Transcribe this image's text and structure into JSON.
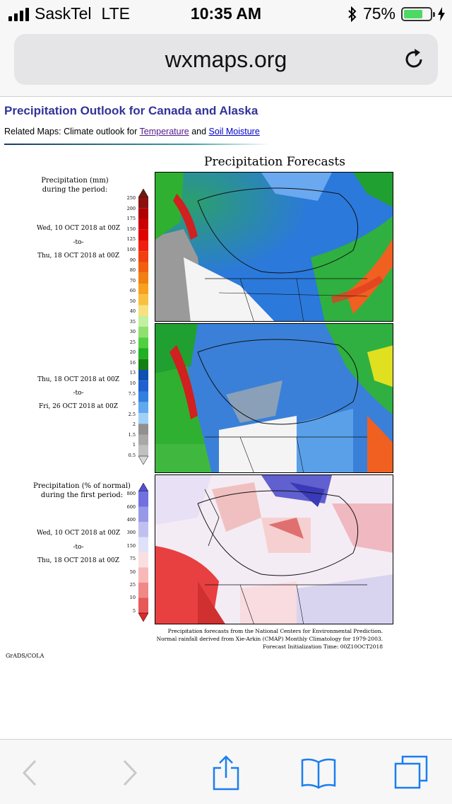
{
  "status_bar": {
    "carrier": "SaskTel",
    "network": "LTE",
    "time": "10:35 AM",
    "battery_percent_label": "75%",
    "battery_level": 0.75
  },
  "browser": {
    "url": "wxmaps.org"
  },
  "page": {
    "title": "Precipitation Outlook for Canada and Alaska",
    "related_prefix": "Related Maps: Climate outlook for ",
    "link_temperature": "Temperature",
    "related_and": " and ",
    "link_soil_moisture": "Soil Moisture"
  },
  "figure": {
    "title": "Precipitation Forecasts",
    "panel1": {
      "legend_title_1": "Precipitation (mm)",
      "legend_title_2": "during the period:",
      "start": "Wed, 10 OCT 2018 at 00Z",
      "to": "-to-",
      "end": "Thu, 18 OCT 2018 at 00Z"
    },
    "panel2": {
      "start": "Thu, 18 OCT 2018 at 00Z",
      "to": "-to-",
      "end": "Fri, 26 OCT 2018 at 00Z"
    },
    "panel3": {
      "legend_title_1": "Precipitation (% of normal)",
      "legend_title_2": "during the first period:",
      "start": "Wed, 10 OCT 2018 at 00Z",
      "to": "-to-",
      "end": "Thu, 18 OCT 2018 at 00Z"
    },
    "mm_scale": [
      "250",
      "200",
      "175",
      "150",
      "125",
      "100",
      "90",
      "80",
      "70",
      "60",
      "50",
      "40",
      "35",
      "30",
      "25",
      "20",
      "16",
      "13",
      "10",
      "7.5",
      "5",
      "2.5",
      "2",
      "1.5",
      "1",
      "0.5"
    ],
    "mm_colors": [
      "#6e1a10",
      "#8b1010",
      "#b00000",
      "#cc0000",
      "#e00000",
      "#f02010",
      "#f04010",
      "#f06010",
      "#f08010",
      "#f8a020",
      "#f8c040",
      "#f8e080",
      "#c0f0a0",
      "#90e070",
      "#50d040",
      "#20b020",
      "#108010",
      "#1050b0",
      "#2060d0",
      "#3080e0",
      "#60a8f0",
      "#a0d0f8",
      "#909090",
      "#a8a8a8",
      "#c0c0c0",
      "#d8d8d8"
    ],
    "pct_scale": [
      "800",
      "600",
      "400",
      "300",
      "150",
      "75",
      "50",
      "25",
      "10",
      "5"
    ],
    "pct_colors": [
      "#5050d0",
      "#7070e0",
      "#9898e8",
      "#c0c0f0",
      "#e0e0f8",
      "#f8e0e0",
      "#f8b8b8",
      "#f08888",
      "#e85858",
      "#e02828"
    ],
    "credits_1": "Precipitation forecasts from the National Centers for Environmental Prediction.",
    "credits_2": "Normal rainfall derived from Xie-Arkin (CMAP) Monthly Climatology for 1979-2003.",
    "credits_3": "Forecast Initialization Time: 00Z10OCT2018",
    "grads_label": "GrADS/COLA"
  },
  "icons": {
    "back": "chevron-left-icon",
    "forward": "chevron-right-icon",
    "share": "share-icon",
    "bookmarks": "book-icon",
    "tabs": "tabs-icon",
    "reload": "reload-icon"
  }
}
